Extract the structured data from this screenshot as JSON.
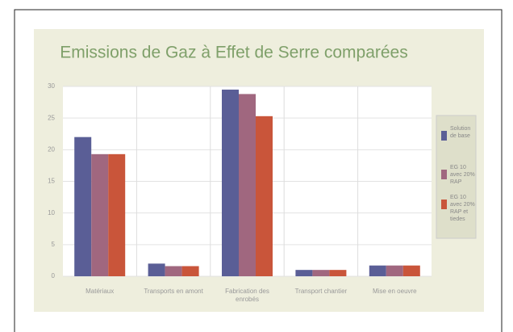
{
  "chart_data": {
    "type": "bar",
    "title": "Emissions de Gaz à Effet de Serre comparées",
    "categories": [
      "Matériaux",
      "Transports en amont",
      "Fabrication des enrobés",
      "Transport chantier",
      "Mise en oeuvre"
    ],
    "series": [
      {
        "name": "Solution de base",
        "color": "#5a5e96",
        "values": [
          22,
          2,
          29.5,
          1,
          1.7
        ]
      },
      {
        "name": "EG 10 avec 20% RAP",
        "color": "#a0677f",
        "values": [
          19.3,
          1.6,
          28.8,
          1,
          1.7
        ]
      },
      {
        "name": "EG 10 avec 20% RAP et tiedes",
        "color": "#c9553a",
        "values": [
          19.3,
          1.6,
          25.3,
          1,
          1.7
        ]
      }
    ],
    "ylim": [
      0,
      30
    ],
    "yticks": [
      0,
      5,
      10,
      15,
      20,
      25,
      30
    ],
    "grid": true,
    "legend": "right"
  }
}
